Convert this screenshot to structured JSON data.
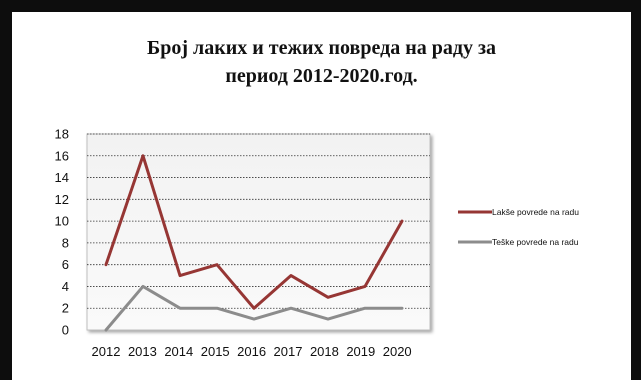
{
  "chart_data": {
    "type": "line",
    "title_line1": "Број лаких и тежих повреда на раду за",
    "title_line2": "период 2012-2020.год.",
    "categories": [
      "2012",
      "2013",
      "2014",
      "2015",
      "2016",
      "2017",
      "2018",
      "2019",
      "2020"
    ],
    "series": [
      {
        "name": "Lakše povrede na radu",
        "color": "#963634",
        "values": [
          6,
          16,
          5,
          6,
          2,
          5,
          3,
          4,
          10
        ]
      },
      {
        "name": "Teške povrede na radu",
        "color": "#8c8c8c",
        "values": [
          0,
          4,
          2,
          2,
          1,
          2,
          1,
          2,
          2
        ]
      }
    ],
    "ylim": [
      0,
      18
    ],
    "yticks": [
      "0",
      "2",
      "4",
      "6",
      "8",
      "10",
      "12",
      "14",
      "16",
      "18"
    ],
    "grid": true,
    "legend": "right"
  }
}
